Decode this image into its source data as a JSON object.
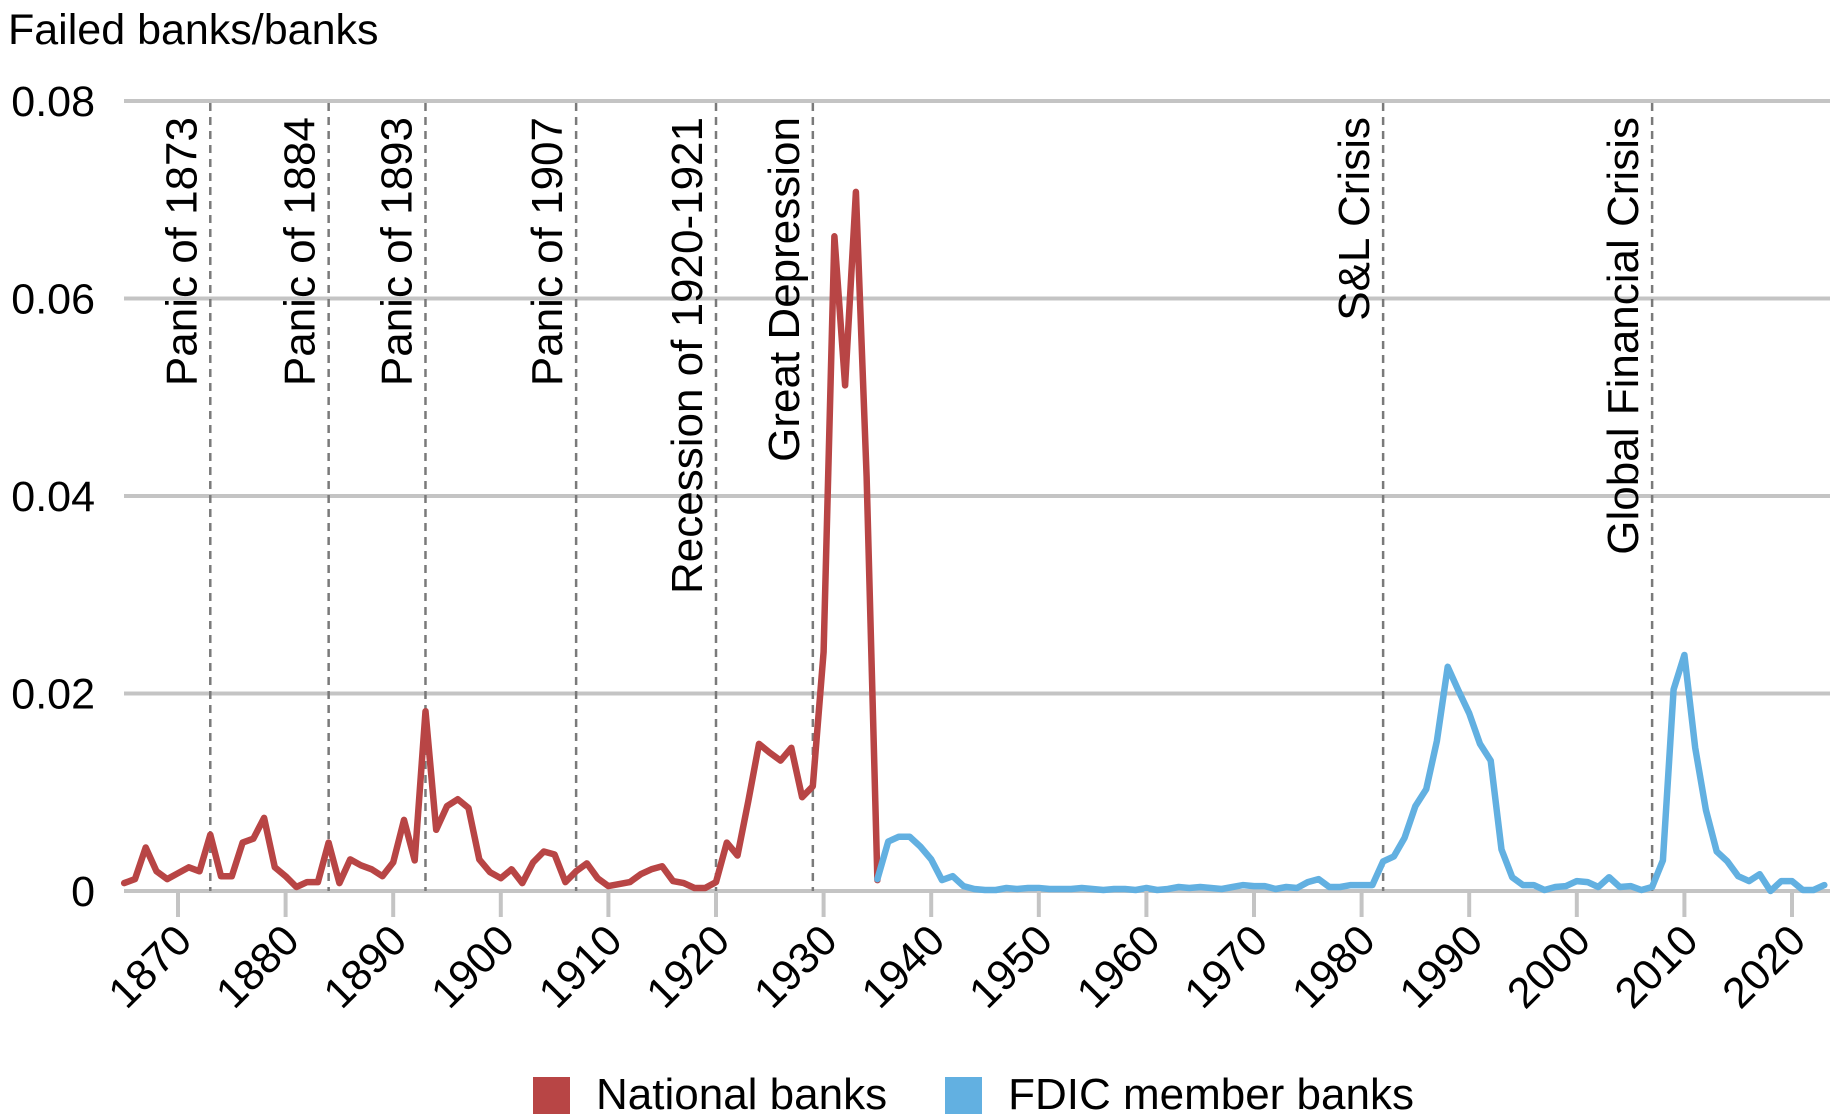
{
  "chart_data": {
    "type": "line",
    "title": "",
    "ylabel": "Failed banks/banks",
    "xlabel": "",
    "ylim": [
      0,
      0.08
    ],
    "xlim": [
      1865,
      2023
    ],
    "yticks": [
      0,
      0.02,
      0.04,
      0.06,
      0.08
    ],
    "ytick_labels": [
      "0",
      "0.02",
      "0.04",
      "0.06",
      "0.08"
    ],
    "xticks": [
      1870,
      1880,
      1890,
      1900,
      1910,
      1920,
      1930,
      1940,
      1950,
      1960,
      1970,
      1980,
      1990,
      2000,
      2010,
      2020
    ],
    "xtick_labels": [
      "1870",
      "1880",
      "1890",
      "1900",
      "1910",
      "1920",
      "1930",
      "1940",
      "1950",
      "1960",
      "1970",
      "1980",
      "1990",
      "2000",
      "2010",
      "2020"
    ],
    "grid": {
      "horizontal": true,
      "vertical": false
    },
    "legend_position": "bottom",
    "series": [
      {
        "name": "National banks",
        "color": "#B84545",
        "x": [
          1865,
          1866,
          1867,
          1868,
          1869,
          1870,
          1871,
          1872,
          1873,
          1874,
          1875,
          1876,
          1877,
          1878,
          1879,
          1880,
          1881,
          1882,
          1883,
          1884,
          1885,
          1886,
          1887,
          1888,
          1889,
          1890,
          1891,
          1892,
          1893,
          1894,
          1895,
          1896,
          1897,
          1898,
          1899,
          1900,
          1901,
          1902,
          1903,
          1904,
          1905,
          1906,
          1907,
          1908,
          1909,
          1910,
          1911,
          1912,
          1913,
          1914,
          1915,
          1916,
          1917,
          1918,
          1919,
          1920,
          1921,
          1922,
          1923,
          1924,
          1925,
          1926,
          1927,
          1928,
          1929,
          1930,
          1931,
          1932,
          1933,
          1934,
          1935
        ],
        "values": [
          0.0008,
          0.0012,
          0.0044,
          0.002,
          0.0012,
          0.0018,
          0.0024,
          0.002,
          0.0057,
          0.0015,
          0.0015,
          0.0049,
          0.0053,
          0.0074,
          0.0024,
          0.0015,
          0.0004,
          0.0009,
          0.0009,
          0.0049,
          0.0008,
          0.0032,
          0.0026,
          0.0022,
          0.0015,
          0.0029,
          0.0072,
          0.0031,
          0.0182,
          0.0062,
          0.0086,
          0.0093,
          0.0084,
          0.0032,
          0.0019,
          0.0013,
          0.0022,
          0.0008,
          0.0029,
          0.004,
          0.0037,
          0.0009,
          0.002,
          0.0028,
          0.0013,
          0.0005,
          0.0007,
          0.0009,
          0.0017,
          0.0022,
          0.0025,
          0.001,
          0.0008,
          0.0003,
          0.0003,
          0.0009,
          0.0049,
          0.0036,
          0.0091,
          0.0149,
          0.014,
          0.0132,
          0.0145,
          0.0095,
          0.0106,
          0.0242,
          0.0663,
          0.0512,
          0.0708,
          0.042,
          0.0011
        ]
      },
      {
        "name": "FDIC member banks",
        "color": "#62B0E1",
        "x": [
          1935,
          1936,
          1937,
          1938,
          1939,
          1940,
          1941,
          1942,
          1943,
          1944,
          1945,
          1946,
          1947,
          1948,
          1949,
          1950,
          1951,
          1952,
          1953,
          1954,
          1955,
          1956,
          1957,
          1958,
          1959,
          1960,
          1961,
          1962,
          1963,
          1964,
          1965,
          1966,
          1967,
          1968,
          1969,
          1970,
          1971,
          1972,
          1973,
          1974,
          1975,
          1976,
          1977,
          1978,
          1979,
          1980,
          1981,
          1982,
          1983,
          1984,
          1985,
          1986,
          1987,
          1988,
          1989,
          1990,
          1991,
          1992,
          1993,
          1994,
          1995,
          1996,
          1997,
          1998,
          1999,
          2000,
          2001,
          2002,
          2003,
          2004,
          2005,
          2006,
          2007,
          2008,
          2009,
          2010,
          2011,
          2012,
          2013,
          2014,
          2015,
          2016,
          2017,
          2018,
          2019,
          2020,
          2021,
          2022,
          2023
        ],
        "values": [
          0.0012,
          0.005,
          0.0055,
          0.0055,
          0.0045,
          0.0032,
          0.0011,
          0.0015,
          0.0005,
          0.0002,
          0.0001,
          0.0001,
          0.0003,
          0.0002,
          0.0003,
          0.0003,
          0.0002,
          0.0002,
          0.0002,
          0.0003,
          0.0002,
          0.0001,
          0.0002,
          0.0002,
          0.0001,
          0.0003,
          0.0001,
          0.0002,
          0.0004,
          0.0003,
          0.0004,
          0.0003,
          0.0002,
          0.0004,
          0.0006,
          0.0005,
          0.0005,
          0.0002,
          0.0004,
          0.0003,
          0.0009,
          0.0012,
          0.0004,
          0.0004,
          0.0006,
          0.0006,
          0.0006,
          0.003,
          0.0035,
          0.0054,
          0.0086,
          0.0103,
          0.0152,
          0.0227,
          0.0203,
          0.018,
          0.0149,
          0.0132,
          0.0042,
          0.0014,
          0.0006,
          0.0006,
          0.0001,
          0.0004,
          0.0005,
          0.001,
          0.0009,
          0.0004,
          0.0014,
          0.0004,
          0.0005,
          0.0001,
          0.0004,
          0.0031,
          0.0204,
          0.0239,
          0.0145,
          0.0082,
          0.004,
          0.003,
          0.0015,
          0.001,
          0.0017,
          0.0,
          0.001,
          0.001,
          0.0001,
          0.0001,
          0.0006
        ]
      }
    ],
    "annotations": [
      {
        "year": 1873,
        "label": "Panic of 1873"
      },
      {
        "year": 1884,
        "label": "Panic of 1884"
      },
      {
        "year": 1893,
        "label": "Panic of 1893"
      },
      {
        "year": 1907,
        "label": "Panic of 1907"
      },
      {
        "year": 1920,
        "label": "Recession of 1920-1921"
      },
      {
        "year": 1929,
        "label": "Great Depression"
      },
      {
        "year": 1982,
        "label": "S&L Crisis"
      },
      {
        "year": 2007,
        "label": "Global Financial Crisis"
      }
    ]
  },
  "axis": {
    "y_title": "Failed banks/banks"
  },
  "legend": {
    "items": [
      {
        "label": "National banks",
        "color": "#B84545"
      },
      {
        "label": "FDIC member banks",
        "color": "#62B0E1"
      }
    ]
  },
  "colors": {
    "grid": "#C4C4C4",
    "annotation_line": "#7A7A7A"
  }
}
